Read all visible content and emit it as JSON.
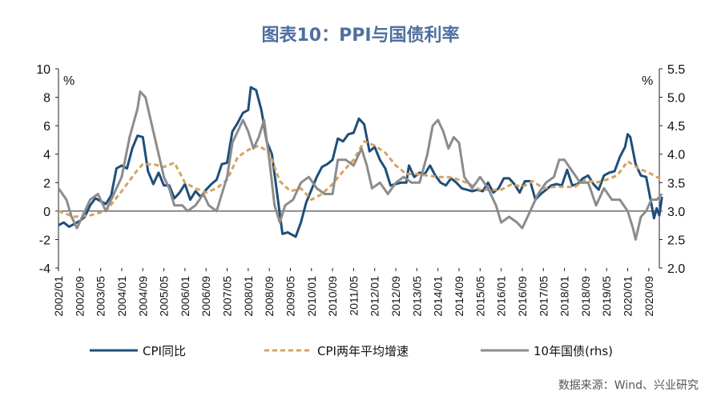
{
  "title": "图表10：PPI与国债利率",
  "source": "数据来源：Wind、兴业研究",
  "chart_data": {
    "type": "line",
    "left_axis": {
      "unit": "%",
      "ylim": [
        -4,
        10
      ],
      "ticks": [
        "10",
        "8",
        "6",
        "4",
        "2",
        "0",
        "-2",
        "-4"
      ]
    },
    "right_axis": {
      "unit": "%",
      "ylim": [
        2.0,
        5.5
      ],
      "ticks": [
        "5.5",
        "5.0",
        "4.5",
        "4.0",
        "3.5",
        "3.0",
        "2.5",
        "2.0"
      ]
    },
    "x_ticks": [
      "2002/01",
      "2002/09",
      "2003/05",
      "2004/01",
      "2004/09",
      "2005/05",
      "2006/01",
      "2006/09",
      "2007/05",
      "2008/01",
      "2008/09",
      "2009/05",
      "2010/01",
      "2010/09",
      "2011/05",
      "2012/01",
      "2012/09",
      "2013/05",
      "2014/01",
      "2014/09",
      "2015/05",
      "2016/01",
      "2016/09",
      "2017/05",
      "2018/01",
      "2018/09",
      "2019/05",
      "2020/01",
      "2020/09"
    ],
    "x_range": [
      "2002/01",
      "2021/01"
    ],
    "legend_position": "bottom",
    "series": [
      {
        "name": "CPI同比",
        "axis": "left",
        "color": "#1f4e79",
        "style": "solid",
        "points": [
          [
            "2002/01",
            -1.0
          ],
          [
            "2002/03",
            -0.8
          ],
          [
            "2002/05",
            -1.1
          ],
          [
            "2002/07",
            -0.9
          ],
          [
            "2002/09",
            -0.7
          ],
          [
            "2002/11",
            -0.4
          ],
          [
            "2003/01",
            0.4
          ],
          [
            "2003/03",
            0.9
          ],
          [
            "2003/05",
            0.7
          ],
          [
            "2003/07",
            0.5
          ],
          [
            "2003/09",
            1.1
          ],
          [
            "2003/11",
            3.0
          ],
          [
            "2004/01",
            3.2
          ],
          [
            "2004/03",
            3.0
          ],
          [
            "2004/05",
            4.4
          ],
          [
            "2004/07",
            5.3
          ],
          [
            "2004/09",
            5.2
          ],
          [
            "2004/11",
            2.8
          ],
          [
            "2005/01",
            1.9
          ],
          [
            "2005/03",
            2.7
          ],
          [
            "2005/05",
            1.8
          ],
          [
            "2005/07",
            1.8
          ],
          [
            "2005/09",
            0.9
          ],
          [
            "2005/11",
            1.3
          ],
          [
            "2006/01",
            1.9
          ],
          [
            "2006/03",
            0.8
          ],
          [
            "2006/05",
            1.4
          ],
          [
            "2006/07",
            1.0
          ],
          [
            "2006/09",
            1.5
          ],
          [
            "2006/11",
            1.9
          ],
          [
            "2007/01",
            2.2
          ],
          [
            "2007/03",
            3.3
          ],
          [
            "2007/05",
            3.4
          ],
          [
            "2007/07",
            5.6
          ],
          [
            "2007/09",
            6.2
          ],
          [
            "2007/11",
            6.9
          ],
          [
            "2008/01",
            7.1
          ],
          [
            "2008/02",
            8.7
          ],
          [
            "2008/04",
            8.5
          ],
          [
            "2008/06",
            7.1
          ],
          [
            "2008/08",
            4.9
          ],
          [
            "2008/10",
            4.0
          ],
          [
            "2008/12",
            1.2
          ],
          [
            "2009/02",
            -1.6
          ],
          [
            "2009/04",
            -1.5
          ],
          [
            "2009/06",
            -1.7
          ],
          [
            "2009/07",
            -1.8
          ],
          [
            "2009/09",
            -0.8
          ],
          [
            "2009/11",
            0.6
          ],
          [
            "2010/01",
            1.5
          ],
          [
            "2010/03",
            2.4
          ],
          [
            "2010/05",
            3.1
          ],
          [
            "2010/07",
            3.3
          ],
          [
            "2010/09",
            3.6
          ],
          [
            "2010/11",
            5.1
          ],
          [
            "2011/01",
            4.9
          ],
          [
            "2011/03",
            5.4
          ],
          [
            "2011/05",
            5.5
          ],
          [
            "2011/07",
            6.5
          ],
          [
            "2011/09",
            6.1
          ],
          [
            "2011/11",
            4.2
          ],
          [
            "2012/01",
            4.5
          ],
          [
            "2012/03",
            3.6
          ],
          [
            "2012/05",
            3.0
          ],
          [
            "2012/07",
            1.8
          ],
          [
            "2012/09",
            1.9
          ],
          [
            "2012/11",
            2.0
          ],
          [
            "2013/01",
            2.0
          ],
          [
            "2013/02",
            3.2
          ],
          [
            "2013/04",
            2.4
          ],
          [
            "2013/06",
            2.7
          ],
          [
            "2013/08",
            2.6
          ],
          [
            "2013/10",
            3.2
          ],
          [
            "2013/12",
            2.5
          ],
          [
            "2014/02",
            2.0
          ],
          [
            "2014/04",
            1.8
          ],
          [
            "2014/06",
            2.3
          ],
          [
            "2014/08",
            2.0
          ],
          [
            "2014/10",
            1.6
          ],
          [
            "2014/12",
            1.5
          ],
          [
            "2015/02",
            1.4
          ],
          [
            "2015/04",
            1.5
          ],
          [
            "2015/06",
            1.4
          ],
          [
            "2015/08",
            2.0
          ],
          [
            "2015/10",
            1.3
          ],
          [
            "2015/12",
            1.6
          ],
          [
            "2016/02",
            2.3
          ],
          [
            "2016/04",
            2.3
          ],
          [
            "2016/06",
            1.9
          ],
          [
            "2016/08",
            1.3
          ],
          [
            "2016/10",
            2.1
          ],
          [
            "2016/12",
            2.1
          ],
          [
            "2017/02",
            0.8
          ],
          [
            "2017/04",
            1.2
          ],
          [
            "2017/06",
            1.5
          ],
          [
            "2017/08",
            1.8
          ],
          [
            "2017/10",
            1.9
          ],
          [
            "2017/12",
            1.8
          ],
          [
            "2018/02",
            2.9
          ],
          [
            "2018/04",
            1.8
          ],
          [
            "2018/06",
            1.9
          ],
          [
            "2018/08",
            2.3
          ],
          [
            "2018/10",
            2.5
          ],
          [
            "2018/12",
            1.9
          ],
          [
            "2019/02",
            1.5
          ],
          [
            "2019/04",
            2.5
          ],
          [
            "2019/06",
            2.7
          ],
          [
            "2019/08",
            2.8
          ],
          [
            "2019/10",
            3.8
          ],
          [
            "2019/12",
            4.5
          ],
          [
            "2020/01",
            5.4
          ],
          [
            "2020/02",
            5.2
          ],
          [
            "2020/04",
            3.3
          ],
          [
            "2020/06",
            2.5
          ],
          [
            "2020/08",
            2.4
          ],
          [
            "2020/10",
            0.5
          ],
          [
            "2020/11",
            -0.5
          ],
          [
            "2020/12",
            0.2
          ],
          [
            "2021/01",
            -0.3
          ],
          [
            "2021/02",
            1.0
          ]
        ]
      },
      {
        "name": "CPI两年平均增速",
        "axis": "left",
        "color": "#d4a463",
        "style": "dashed",
        "points": [
          [
            "2002/01",
            0.0
          ],
          [
            "2002/07",
            -0.4
          ],
          [
            "2003/01",
            -0.3
          ],
          [
            "2003/07",
            0.0
          ],
          [
            "2004/01",
            1.4
          ],
          [
            "2004/07",
            2.9
          ],
          [
            "2004/09",
            3.3
          ],
          [
            "2005/01",
            3.3
          ],
          [
            "2005/05",
            3.1
          ],
          [
            "2005/09",
            3.4
          ],
          [
            "2006/01",
            2.0
          ],
          [
            "2006/05",
            1.6
          ],
          [
            "2006/09",
            1.3
          ],
          [
            "2007/01",
            1.6
          ],
          [
            "2007/05",
            2.2
          ],
          [
            "2007/09",
            3.8
          ],
          [
            "2008/01",
            4.3
          ],
          [
            "2008/05",
            4.6
          ],
          [
            "2008/09",
            4.1
          ],
          [
            "2009/01",
            2.1
          ],
          [
            "2009/05",
            1.4
          ],
          [
            "2009/09",
            1.6
          ],
          [
            "2010/01",
            0.8
          ],
          [
            "2010/05",
            1.2
          ],
          [
            "2010/09",
            1.9
          ],
          [
            "2011/01",
            2.8
          ],
          [
            "2011/05",
            3.6
          ],
          [
            "2011/09",
            4.9
          ],
          [
            "2012/01",
            4.6
          ],
          [
            "2012/05",
            4.1
          ],
          [
            "2012/09",
            3.2
          ],
          [
            "2013/01",
            2.6
          ],
          [
            "2013/05",
            2.6
          ],
          [
            "2013/09",
            2.5
          ],
          [
            "2014/01",
            2.4
          ],
          [
            "2014/05",
            2.4
          ],
          [
            "2014/09",
            2.2
          ],
          [
            "2015/01",
            1.9
          ],
          [
            "2015/05",
            1.5
          ],
          [
            "2015/09",
            1.5
          ],
          [
            "2016/01",
            1.5
          ],
          [
            "2016/05",
            1.9
          ],
          [
            "2016/09",
            1.7
          ],
          [
            "2017/01",
            2.1
          ],
          [
            "2017/05",
            1.6
          ],
          [
            "2017/09",
            1.7
          ],
          [
            "2018/01",
            1.7
          ],
          [
            "2018/05",
            1.7
          ],
          [
            "2018/09",
            2.2
          ],
          [
            "2019/01",
            2.0
          ],
          [
            "2019/05",
            2.2
          ],
          [
            "2019/09",
            2.5
          ],
          [
            "2020/01",
            3.5
          ],
          [
            "2020/05",
            3.0
          ],
          [
            "2020/09",
            2.7
          ],
          [
            "2021/02",
            2.2
          ]
        ]
      },
      {
        "name": "10年国债(rhs)",
        "axis": "right",
        "color": "#8c8c8c",
        "style": "solid",
        "points": [
          [
            "2002/01",
            3.4
          ],
          [
            "2002/04",
            3.2
          ],
          [
            "2002/06",
            2.9
          ],
          [
            "2002/08",
            2.7
          ],
          [
            "2002/10",
            2.9
          ],
          [
            "2003/01",
            3.2
          ],
          [
            "2003/04",
            3.3
          ],
          [
            "2003/07",
            3.0
          ],
          [
            "2003/10",
            3.3
          ],
          [
            "2004/01",
            3.6
          ],
          [
            "2004/04",
            4.3
          ],
          [
            "2004/07",
            4.8
          ],
          [
            "2004/08",
            5.1
          ],
          [
            "2004/10",
            5.0
          ],
          [
            "2005/01",
            4.4
          ],
          [
            "2005/03",
            4.0
          ],
          [
            "2005/05",
            3.6
          ],
          [
            "2005/07",
            3.4
          ],
          [
            "2005/09",
            3.1
          ],
          [
            "2005/12",
            3.1
          ],
          [
            "2006/02",
            3.0
          ],
          [
            "2006/05",
            3.1
          ],
          [
            "2006/08",
            3.3
          ],
          [
            "2006/10",
            3.1
          ],
          [
            "2007/01",
            3.0
          ],
          [
            "2007/03",
            3.3
          ],
          [
            "2007/05",
            3.6
          ],
          [
            "2007/07",
            4.2
          ],
          [
            "2007/09",
            4.4
          ],
          [
            "2007/11",
            4.6
          ],
          [
            "2008/01",
            4.4
          ],
          [
            "2008/03",
            4.1
          ],
          [
            "2008/05",
            4.3
          ],
          [
            "2008/07",
            4.6
          ],
          [
            "2008/09",
            3.9
          ],
          [
            "2008/11",
            3.1
          ],
          [
            "2009/01",
            2.8
          ],
          [
            "2009/03",
            3.1
          ],
          [
            "2009/06",
            3.2
          ],
          [
            "2009/09",
            3.5
          ],
          [
            "2009/12",
            3.6
          ],
          [
            "2010/03",
            3.4
          ],
          [
            "2010/06",
            3.3
          ],
          [
            "2010/09",
            3.3
          ],
          [
            "2010/11",
            3.9
          ],
          [
            "2011/02",
            3.9
          ],
          [
            "2011/05",
            3.8
          ],
          [
            "2011/08",
            4.1
          ],
          [
            "2011/10",
            3.8
          ],
          [
            "2011/12",
            3.4
          ],
          [
            "2012/03",
            3.5
          ],
          [
            "2012/06",
            3.3
          ],
          [
            "2012/09",
            3.5
          ],
          [
            "2012/12",
            3.6
          ],
          [
            "2013/03",
            3.5
          ],
          [
            "2013/06",
            3.5
          ],
          [
            "2013/09",
            4.0
          ],
          [
            "2013/11",
            4.5
          ],
          [
            "2014/01",
            4.6
          ],
          [
            "2014/03",
            4.4
          ],
          [
            "2014/05",
            4.1
          ],
          [
            "2014/07",
            4.3
          ],
          [
            "2014/09",
            4.2
          ],
          [
            "2014/11",
            3.6
          ],
          [
            "2015/02",
            3.4
          ],
          [
            "2015/05",
            3.6
          ],
          [
            "2015/08",
            3.4
          ],
          [
            "2015/11",
            3.1
          ],
          [
            "2016/01",
            2.8
          ],
          [
            "2016/04",
            2.9
          ],
          [
            "2016/07",
            2.8
          ],
          [
            "2016/09",
            2.7
          ],
          [
            "2016/12",
            3.0
          ],
          [
            "2017/03",
            3.3
          ],
          [
            "2017/06",
            3.5
          ],
          [
            "2017/09",
            3.6
          ],
          [
            "2017/11",
            3.9
          ],
          [
            "2018/01",
            3.9
          ],
          [
            "2018/04",
            3.7
          ],
          [
            "2018/07",
            3.5
          ],
          [
            "2018/10",
            3.5
          ],
          [
            "2019/01",
            3.1
          ],
          [
            "2019/04",
            3.4
          ],
          [
            "2019/07",
            3.2
          ],
          [
            "2019/10",
            3.2
          ],
          [
            "2020/01",
            3.0
          ],
          [
            "2020/03",
            2.7
          ],
          [
            "2020/04",
            2.5
          ],
          [
            "2020/06",
            2.9
          ],
          [
            "2020/08",
            3.0
          ],
          [
            "2020/10",
            3.2
          ],
          [
            "2020/12",
            3.2
          ],
          [
            "2021/02",
            3.3
          ]
        ]
      }
    ]
  }
}
